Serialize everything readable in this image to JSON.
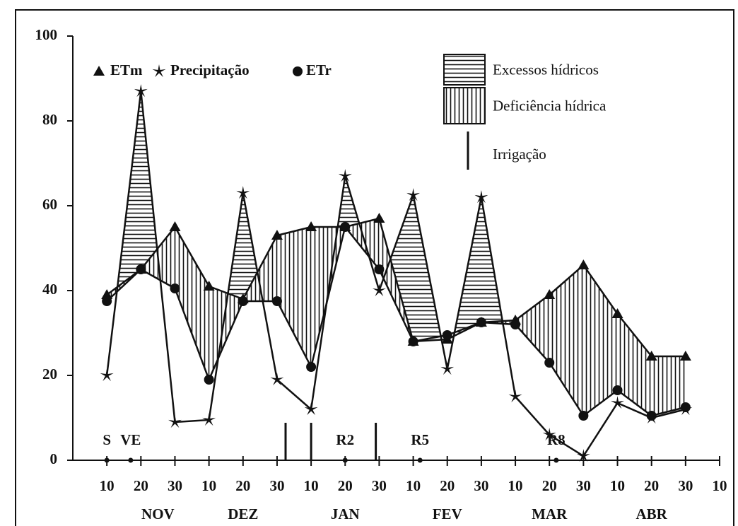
{
  "chart_data": {
    "type": "line",
    "x": [
      0,
      1,
      2,
      3,
      4,
      5,
      6,
      7,
      8,
      9,
      10,
      11,
      12,
      13,
      14,
      15,
      16,
      17
    ],
    "xlim": [
      -1,
      18
    ],
    "xticks": [
      {
        "value": 0,
        "label": "10"
      },
      {
        "value": 1,
        "label": "20"
      },
      {
        "value": 2,
        "label": "30"
      },
      {
        "value": 3,
        "label": "10"
      },
      {
        "value": 4,
        "label": "20"
      },
      {
        "value": 5,
        "label": "30"
      },
      {
        "value": 6,
        "label": "10"
      },
      {
        "value": 7,
        "label": "20"
      },
      {
        "value": 8,
        "label": "30"
      },
      {
        "value": 9,
        "label": "10"
      },
      {
        "value": 10,
        "label": "20"
      },
      {
        "value": 11,
        "label": "30"
      },
      {
        "value": 12,
        "label": "10"
      },
      {
        "value": 13,
        "label": "20"
      },
      {
        "value": 14,
        "label": "30"
      },
      {
        "value": 15,
        "label": "10"
      },
      {
        "value": 16,
        "label": "20"
      },
      {
        "value": 17,
        "label": "30"
      },
      {
        "value": 18,
        "label": "10"
      }
    ],
    "months": [
      {
        "label": "NOV",
        "x": 1.5
      },
      {
        "label": "DEZ",
        "x": 4
      },
      {
        "label": "JAN",
        "x": 7
      },
      {
        "label": "FEV",
        "x": 10
      },
      {
        "label": "MAR",
        "x": 13
      },
      {
        "label": "ABR",
        "x": 16
      }
    ],
    "ylim": [
      0,
      100
    ],
    "yticks": [
      0,
      20,
      40,
      60,
      80,
      100
    ],
    "series": [
      {
        "name": "ETm",
        "color": "#111111",
        "marker": "triangle",
        "values": [
          39,
          45,
          55,
          41,
          38,
          53,
          55,
          55,
          57,
          28,
          28.5,
          32.5,
          33,
          39,
          46,
          34.5,
          24.5,
          24.5
        ]
      },
      {
        "name": "Precipitação",
        "color": "#111111",
        "marker": "star",
        "values": [
          20,
          87,
          9,
          9.5,
          63,
          19,
          12,
          67,
          40,
          62.5,
          21.5,
          62,
          15,
          6,
          1,
          13.5,
          10,
          12
        ]
      },
      {
        "name": "ETr",
        "color": "#111111",
        "marker": "circle",
        "values": [
          37.5,
          45,
          40.5,
          19,
          37.5,
          37.5,
          22,
          55,
          45,
          28,
          29.5,
          32.5,
          32,
          23,
          10.5,
          16.5,
          10.5,
          12.5
        ]
      }
    ],
    "areas": [
      {
        "name": "Excessos hídricos"
      },
      {
        "name": "Deficiência hídrica"
      }
    ],
    "irrigation": {
      "label": "Irrigação",
      "x": [
        5.25,
        6,
        7.9
      ]
    },
    "stages": [
      {
        "label": "S",
        "x": 0
      },
      {
        "label": "VE",
        "x": 0.7
      },
      {
        "label": "R2",
        "x": 7
      },
      {
        "label": "R5",
        "x": 9.2
      },
      {
        "label": "R8",
        "x": 13.2
      }
    ]
  }
}
